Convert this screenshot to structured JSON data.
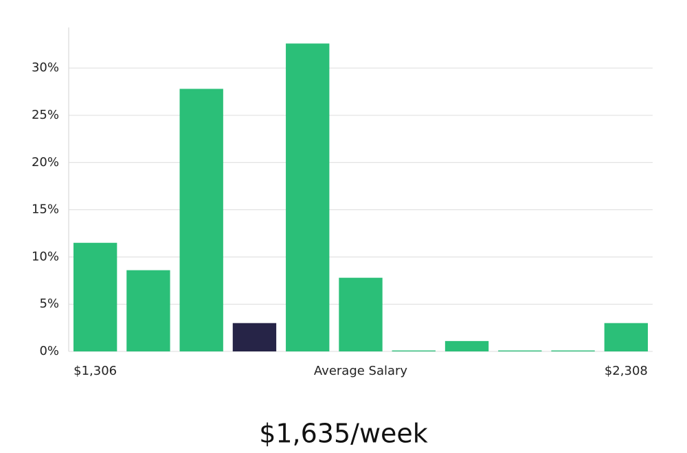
{
  "chart_data": {
    "type": "bar",
    "categories": [
      "$1,306",
      null,
      null,
      null,
      null,
      "Average Salary",
      null,
      null,
      null,
      null,
      "$2,308"
    ],
    "values": [
      11.5,
      8.6,
      27.8,
      3.0,
      32.6,
      7.8,
      0.1,
      1.1,
      0.1,
      0.1,
      3.0
    ],
    "colors": [
      "#2bbf78",
      "#2bbf78",
      "#2bbf78",
      "#262447",
      "#2bbf78",
      "#2bbf78",
      "#2bbf78",
      "#2bbf78",
      "#2bbf78",
      "#2bbf78",
      "#2bbf78"
    ],
    "ylim": [
      0,
      34.3
    ],
    "yticks": [
      {
        "value": 0,
        "label": "0%"
      },
      {
        "value": 5,
        "label": "5%"
      },
      {
        "value": 10,
        "label": "10%"
      },
      {
        "value": 15,
        "label": "15%"
      },
      {
        "value": 20,
        "label": "20%"
      },
      {
        "value": 25,
        "label": "25%"
      },
      {
        "value": 30,
        "label": "30%"
      }
    ],
    "grid": true,
    "annotation": "$1,635/week"
  }
}
